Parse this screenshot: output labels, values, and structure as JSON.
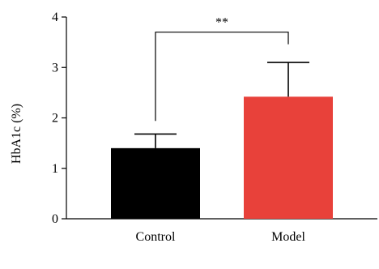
{
  "chart_data": {
    "type": "bar",
    "categories": [
      "Control",
      "Model"
    ],
    "values": [
      1.4,
      2.42
    ],
    "errors": [
      0.28,
      0.68
    ],
    "colors": [
      "#000000",
      "#E8413A"
    ],
    "ylabel": "HbA1c (%)",
    "xlabel": "",
    "ylim": [
      0,
      4
    ],
    "yticks": [
      0,
      1,
      2,
      3,
      4
    ],
    "grid": false,
    "significance": {
      "label": "**",
      "from": "Control",
      "to": "Model",
      "bracket_y": 3.7
    }
  }
}
